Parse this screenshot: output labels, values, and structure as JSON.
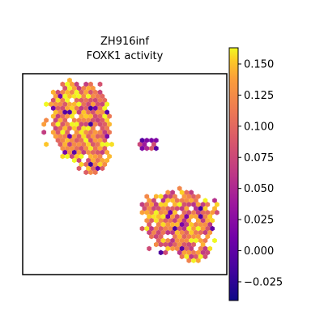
{
  "chart_data": {
    "type": "scatter",
    "title": [
      "ZH916inf",
      "FOXK1 activity"
    ],
    "xlabel": "",
    "ylabel": "",
    "colormap": "plasma",
    "marker": "hexagon",
    "color_range": [
      -0.04,
      0.163
    ],
    "colorbar_ticks": [
      -0.025,
      0.0,
      0.025,
      0.05,
      0.075,
      0.1,
      0.125,
      0.15
    ],
    "colorbar_tick_labels": [
      "−0.025",
      "0.000",
      "0.025",
      "0.050",
      "0.075",
      "0.100",
      "0.125",
      "0.150"
    ],
    "grid": false,
    "legend": "colorbar-right",
    "regions": [
      {
        "name": "",
        "x_range": [
          0.16,
          0.52
        ],
        "y_range": [
          0.08,
          0.55
        ],
        "mean_value": 0.12
      },
      {
        "name": "",
        "x_range": [
          0.52,
          0.93
        ],
        "y_range": [
          0.56,
          0.95
        ],
        "mean_value": 0.11
      },
      {
        "name": "",
        "x_range": [
          0.58,
          0.77
        ],
        "y_range": [
          0.3,
          0.4
        ],
        "mean_value": 0.04
      }
    ]
  }
}
